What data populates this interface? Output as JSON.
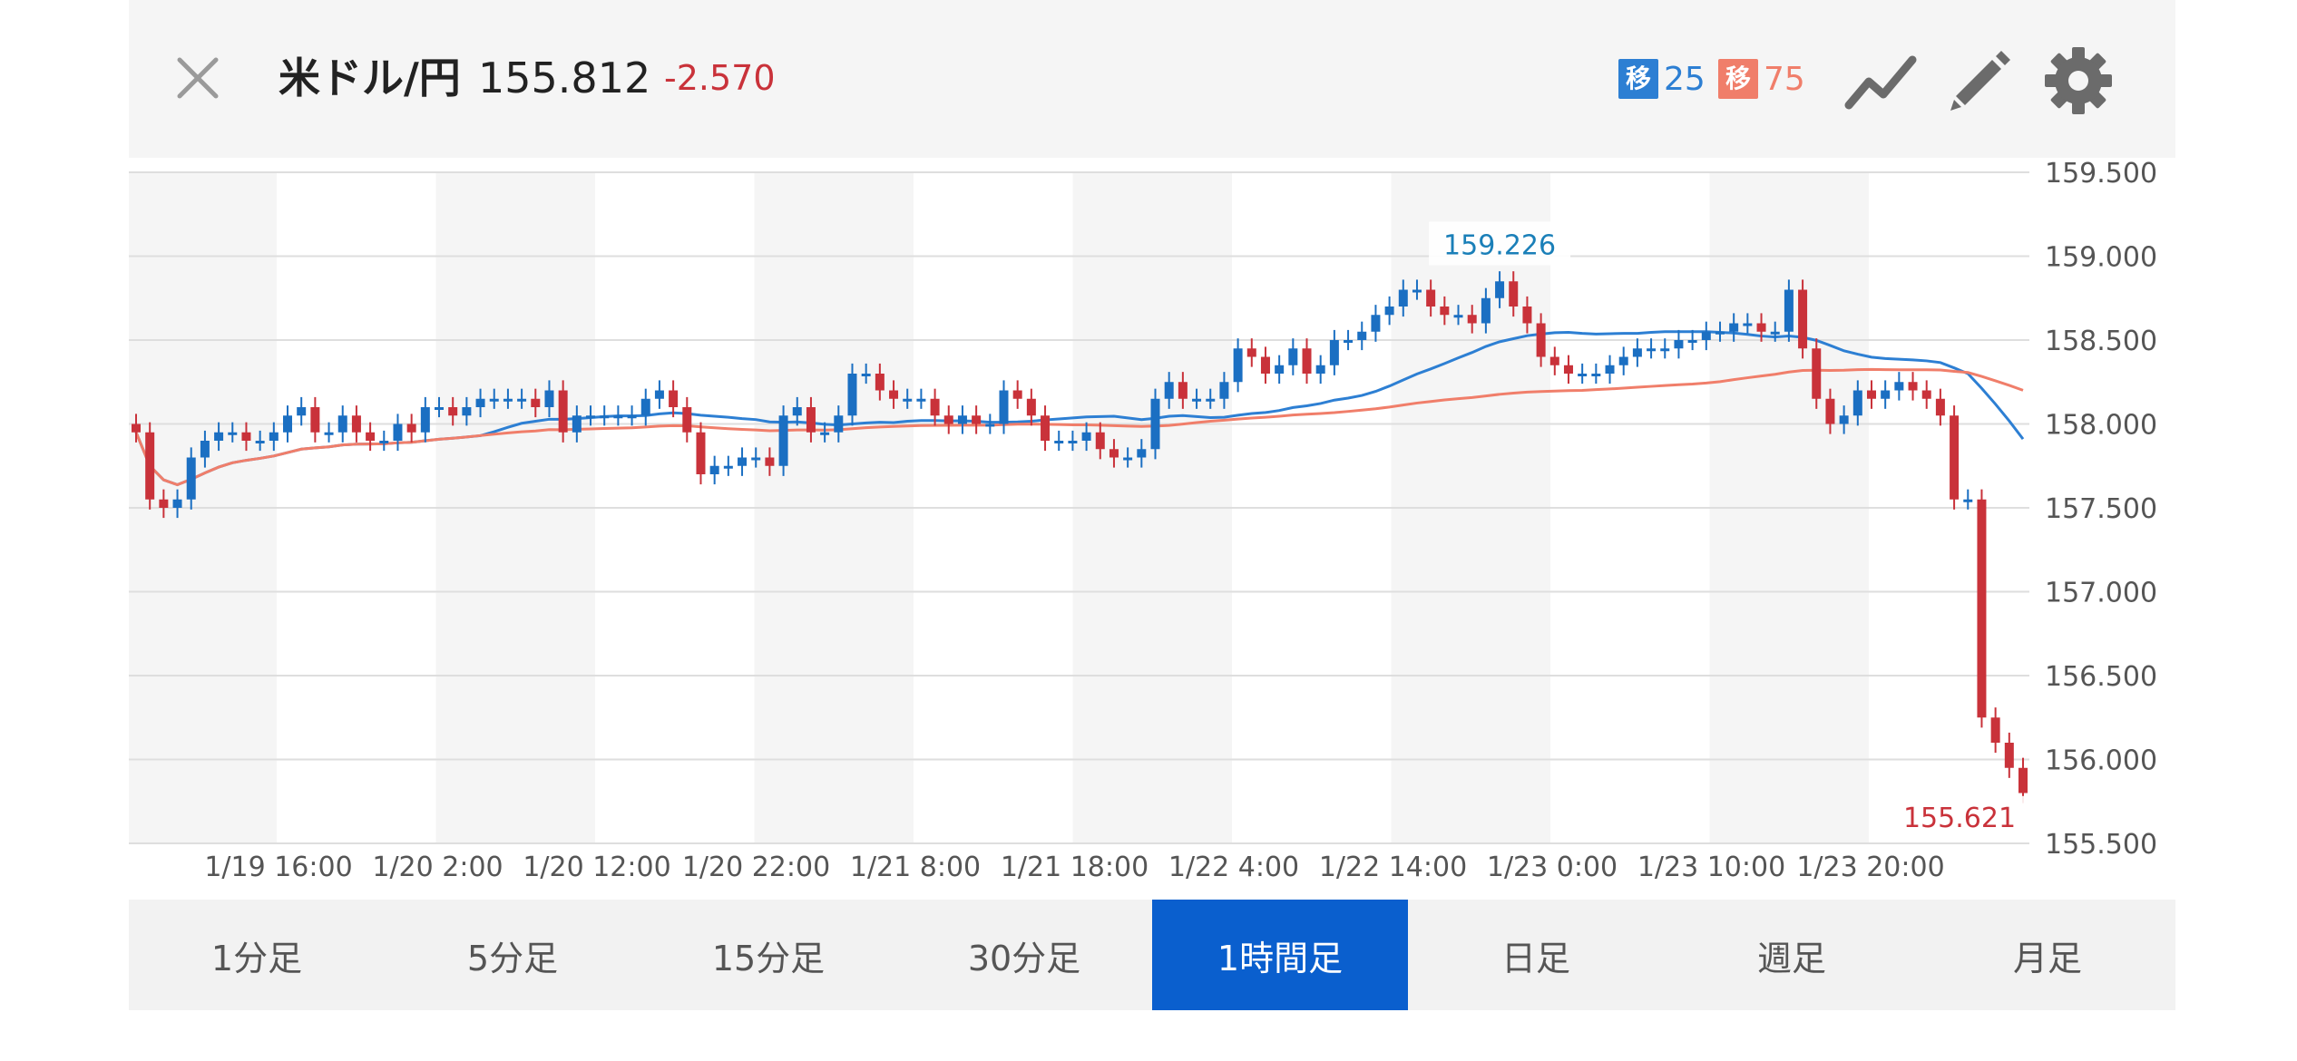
{
  "header": {
    "pair": "米ドル/円",
    "price": "155.812",
    "change": "-2.570",
    "ma_short": {
      "tag": "移",
      "period": "25",
      "color": "#2d7fd3"
    },
    "ma_long": {
      "tag": "移",
      "period": "75",
      "color": "#f07e6a"
    },
    "icons": [
      "close-icon",
      "line-chart-icon",
      "pencil-icon",
      "gear-icon"
    ]
  },
  "tabs": [
    {
      "label": "1分足",
      "active": false
    },
    {
      "label": "5分足",
      "active": false
    },
    {
      "label": "15分足",
      "active": false
    },
    {
      "label": "30分足",
      "active": false
    },
    {
      "label": "1時間足",
      "active": true
    },
    {
      "label": "日足",
      "active": false
    },
    {
      "label": "週足",
      "active": false
    },
    {
      "label": "月足",
      "active": false
    }
  ],
  "chart_data": {
    "type": "candlestick",
    "interval": "1時間足",
    "ylim": [
      155.5,
      159.5
    ],
    "yticks": [
      "159.500",
      "159.000",
      "158.500",
      "158.000",
      "157.500",
      "157.000",
      "156.500",
      "156.000",
      "155.500"
    ],
    "xticks": [
      "1/19 16:00",
      "1/20 2:00",
      "1/20 12:00",
      "1/20 22:00",
      "1/21 8:00",
      "1/21 18:00",
      "1/22 4:00",
      "1/22 14:00",
      "1/23 0:00",
      "1/23 10:00",
      "1/23 20:00"
    ],
    "high_label": "159.226",
    "last_label": "155.621",
    "up_color": "#1b6fc2",
    "down_color": "#c9323a",
    "close": [
      157.95,
      157.55,
      157.5,
      157.55,
      157.8,
      157.9,
      157.95,
      157.95,
      157.9,
      157.9,
      157.95,
      158.05,
      158.1,
      157.95,
      157.95,
      158.05,
      157.95,
      157.9,
      157.9,
      158.0,
      157.95,
      158.1,
      158.1,
      158.05,
      158.1,
      158.15,
      158.15,
      158.15,
      158.15,
      158.1,
      158.2,
      157.95,
      158.05,
      158.05,
      158.05,
      158.05,
      158.05,
      158.15,
      158.2,
      158.1,
      157.95,
      157.7,
      157.75,
      157.75,
      157.8,
      157.8,
      157.75,
      158.05,
      158.1,
      157.95,
      157.95,
      158.05,
      158.3,
      158.3,
      158.2,
      158.15,
      158.15,
      158.15,
      158.05,
      158.0,
      158.05,
      158.0,
      158.0,
      158.2,
      158.15,
      158.05,
      157.9,
      157.9,
      157.9,
      157.95,
      157.85,
      157.8,
      157.8,
      157.85,
      158.15,
      158.25,
      158.15,
      158.15,
      158.15,
      158.25,
      158.45,
      158.4,
      158.3,
      158.35,
      158.45,
      158.3,
      158.35,
      158.5,
      158.5,
      158.55,
      158.65,
      158.7,
      158.8,
      158.8,
      158.7,
      158.65,
      158.65,
      158.6,
      158.75,
      158.85,
      158.7,
      158.6,
      158.4,
      158.35,
      158.3,
      158.3,
      158.3,
      158.35,
      158.4,
      158.45,
      158.45,
      158.45,
      158.5,
      158.5,
      158.55,
      158.55,
      158.6,
      158.6,
      158.55,
      158.55,
      158.8,
      158.45,
      158.15,
      158.0,
      158.05,
      158.2,
      158.15,
      158.2,
      158.25,
      158.2,
      158.15,
      158.05,
      157.55,
      157.55,
      156.25,
      156.1,
      155.95,
      155.8
    ]
  }
}
